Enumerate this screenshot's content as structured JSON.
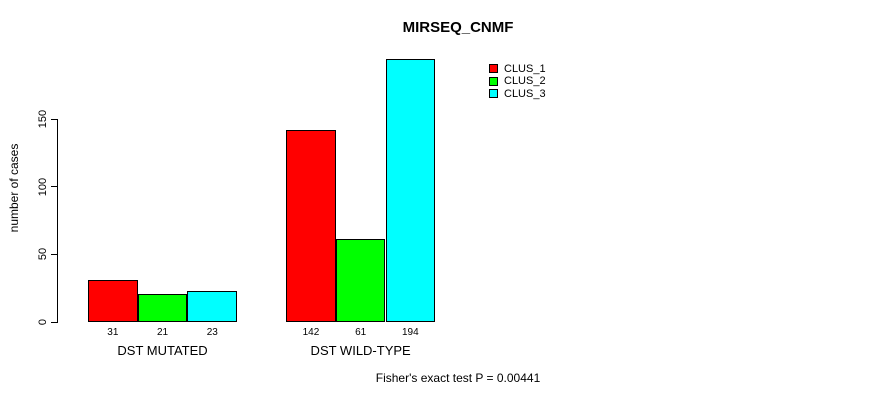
{
  "chart_data": {
    "type": "bar",
    "title": "MIRSEQ_CNMF",
    "xlabel": "",
    "ylabel": "number of cases",
    "categories": [
      "DST MUTATED",
      "DST WILD-TYPE"
    ],
    "series": [
      {
        "name": "CLUS_1",
        "color": "#ff0000",
        "values": [
          31,
          142
        ]
      },
      {
        "name": "CLUS_2",
        "color": "#00ff00",
        "values": [
          21,
          61
        ]
      },
      {
        "name": "CLUS_3",
        "color": "#00ffff",
        "values": [
          23,
          194
        ]
      }
    ],
    "bar_value_labels": [
      [
        "31",
        "21",
        "23"
      ],
      [
        "142",
        "61",
        "194"
      ]
    ],
    "yticks": [
      0,
      50,
      100,
      150
    ],
    "ylim": [
      0,
      194
    ],
    "grid": false,
    "legend_position": "top-right",
    "annotation": "Fisher's exact test P = 0.00441",
    "bar_border_color": "#000000",
    "background_color": "#ffffff"
  }
}
